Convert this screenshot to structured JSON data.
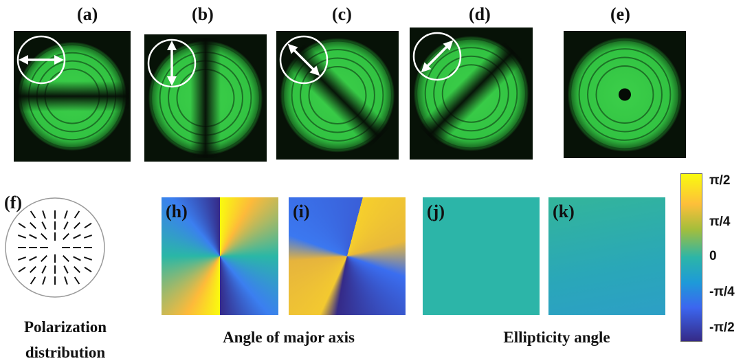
{
  "top_panels": [
    "(a)",
    "(b)",
    "(c)",
    "(d)",
    "(e)"
  ],
  "panel_f": "(f)",
  "map_panels": [
    "(h)",
    "(i)",
    "(j)",
    "(k)"
  ],
  "captions": {
    "polarization": "Polarization distribution",
    "major_axis": "Angle of major axis",
    "ellipticity": "Ellipticity angle"
  },
  "colorbar": {
    "ticks": [
      "π/2",
      "π/4",
      "0",
      "-π/4",
      "-π/2"
    ]
  }
}
